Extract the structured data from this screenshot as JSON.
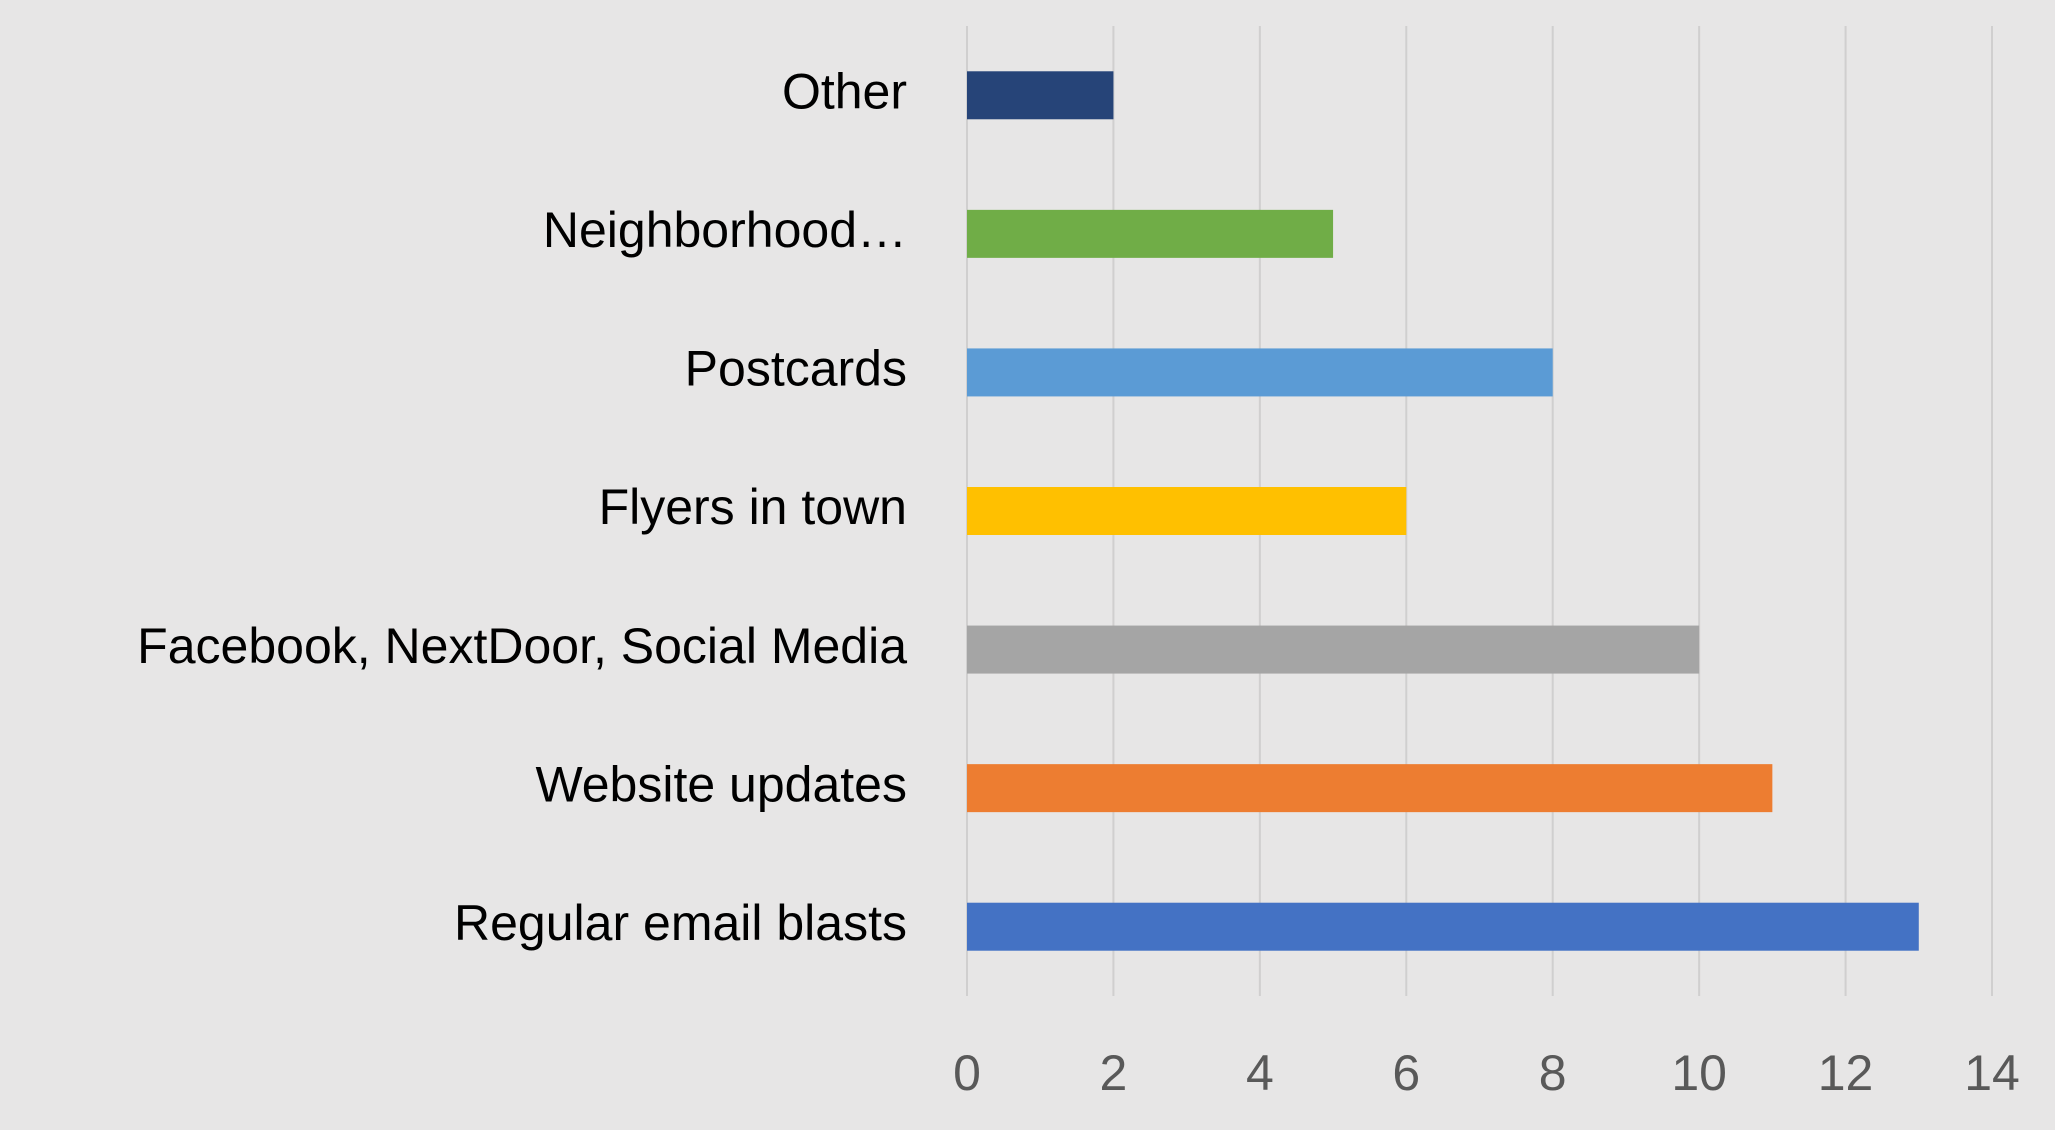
{
  "chart_data": {
    "type": "bar",
    "orientation": "horizontal",
    "categories": [
      "Other",
      "Neighborhood…",
      "Postcards",
      "Flyers in town",
      "Facebook, NextDoor, Social Media",
      "Website updates",
      "Regular email blasts"
    ],
    "values": [
      2,
      5,
      8,
      6,
      10,
      11,
      13
    ],
    "colors": [
      "#264478",
      "#70ad47",
      "#5b9bd5",
      "#ffc000",
      "#a5a5a5",
      "#ed7d31",
      "#4472c4"
    ],
    "xlim": [
      0,
      14
    ],
    "xticks": [
      0,
      2,
      4,
      6,
      8,
      10,
      12,
      14
    ],
    "grid": true
  }
}
